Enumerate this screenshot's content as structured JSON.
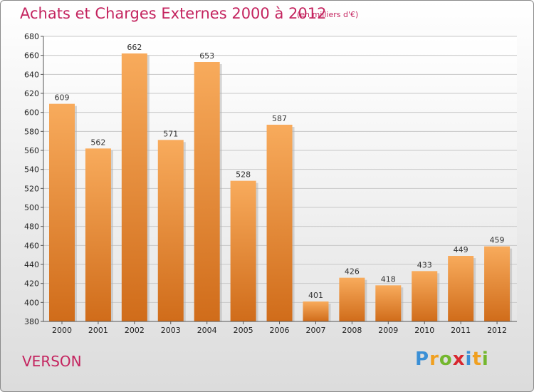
{
  "header": {
    "title": "Achats et Charges Externes 2000 à 2012",
    "subtitle": "(en milliers d'€)"
  },
  "footer": {
    "place": "VERSON",
    "logo": "Proxiti"
  },
  "colors": {
    "accent": "#c4245f",
    "bar_light": "#f7a859",
    "bar_dark": "#d2711d"
  },
  "chart_data": {
    "type": "bar",
    "title": "Achats et Charges Externes 2000 à 2012",
    "subtitle": "(en milliers d'€)",
    "xlabel": "",
    "ylabel": "",
    "categories": [
      "2000",
      "2001",
      "2002",
      "2003",
      "2004",
      "2005",
      "2006",
      "2007",
      "2008",
      "2009",
      "2010",
      "2011",
      "2012"
    ],
    "values": [
      609,
      562,
      662,
      571,
      653,
      528,
      587,
      401,
      426,
      418,
      433,
      449,
      459
    ],
    "ylim": [
      380,
      680
    ],
    "yticks": [
      380,
      400,
      420,
      440,
      460,
      480,
      500,
      520,
      540,
      560,
      580,
      600,
      620,
      640,
      660,
      680
    ],
    "grid": true
  }
}
